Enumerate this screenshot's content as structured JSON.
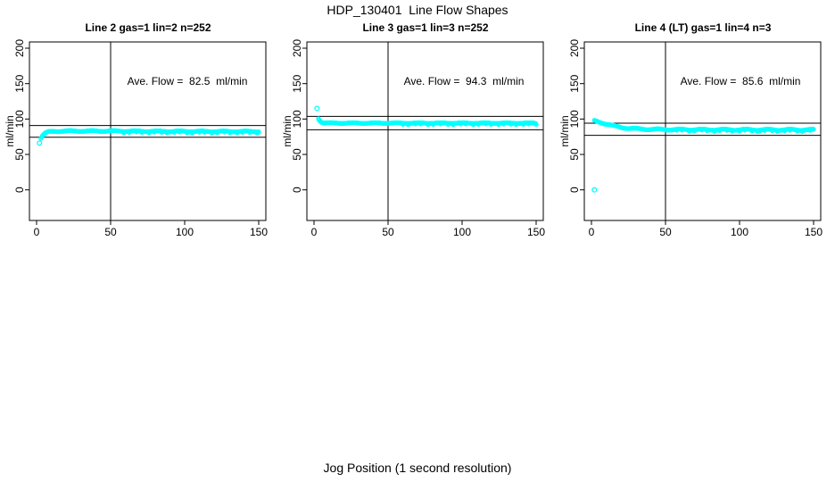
{
  "title": "HDP_130401  Line Flow Shapes",
  "xlabel": "Jog Position (1 second resolution)",
  "colors": {
    "marker": "#00FFFF",
    "axis": "#000000",
    "background": "#FFFFFF",
    "text": "#000000"
  },
  "chart_data": [
    {
      "type": "scatter",
      "title": "Line 2 gas=1 lin=2 n=252",
      "ylabel": "ml/min",
      "annotation": "Ave. Flow =  82.5  ml/min",
      "ave_flow_ml_min": 82.5,
      "n": 252,
      "xticks": [
        0,
        50,
        100,
        150
      ],
      "yticks": [
        0,
        50,
        100,
        150,
        200
      ],
      "xlim": [
        -5,
        155
      ],
      "ylim": [
        -43,
        209
      ],
      "ref_vline_x": 50,
      "ref_hlines": [
        90.8,
        74.3
      ],
      "outliers": [
        [
          2,
          66
        ]
      ],
      "trend": [
        [
          3,
          73
        ],
        [
          4,
          76.5
        ],
        [
          5,
          78.5
        ],
        [
          6,
          80
        ],
        [
          7,
          81
        ],
        [
          8,
          81.8
        ],
        [
          10,
          82.3
        ],
        [
          14,
          82.8
        ],
        [
          20,
          83
        ],
        [
          50,
          83
        ],
        [
          90,
          82.6
        ],
        [
          150,
          82.4
        ]
      ],
      "jitter": 0.7
    },
    {
      "type": "scatter",
      "title": "Line 3 gas=1 lin=3 n=252",
      "ylabel": "ml/min",
      "annotation": "Ave. Flow =  94.3  ml/min",
      "ave_flow_ml_min": 94.3,
      "n": 252,
      "xticks": [
        0,
        50,
        100,
        150
      ],
      "yticks": [
        0,
        50,
        100,
        150,
        200
      ],
      "xlim": [
        -5,
        155
      ],
      "ylim": [
        -43,
        209
      ],
      "ref_vline_x": 50,
      "ref_hlines": [
        103.7,
        84.9
      ],
      "outliers": [
        [
          2,
          115
        ]
      ],
      "trend": [
        [
          3,
          101
        ],
        [
          4,
          97.5
        ],
        [
          5,
          95.8
        ],
        [
          6,
          95
        ],
        [
          8,
          94.5
        ],
        [
          12,
          94.3
        ],
        [
          150,
          94.2
        ]
      ],
      "jitter": 0.55
    },
    {
      "type": "scatter",
      "title": "Line 4 (LT) gas=1 lin=4 n=3",
      "ylabel": "ml/min",
      "annotation": "Ave. Flow =  85.6  ml/min",
      "ave_flow_ml_min": 85.6,
      "n": 3,
      "xticks": [
        0,
        50,
        100,
        150
      ],
      "yticks": [
        0,
        50,
        100,
        150,
        200
      ],
      "xlim": [
        -5,
        155
      ],
      "ylim": [
        -43,
        209
      ],
      "ref_vline_x": 50,
      "ref_hlines": [
        94.2,
        77.0
      ],
      "outliers": [
        [
          2,
          0
        ]
      ],
      "trend": [
        [
          2,
          97.5
        ],
        [
          4,
          96.5
        ],
        [
          6,
          95.5
        ],
        [
          8,
          94.3
        ],
        [
          10,
          93
        ],
        [
          13,
          91.3
        ],
        [
          16,
          89.8
        ],
        [
          20,
          88.3
        ],
        [
          25,
          87
        ],
        [
          30,
          86.2
        ],
        [
          38,
          85.6
        ],
        [
          50,
          85.2
        ],
        [
          80,
          85
        ],
        [
          150,
          84.8
        ]
      ],
      "jitter": 0.9
    }
  ]
}
